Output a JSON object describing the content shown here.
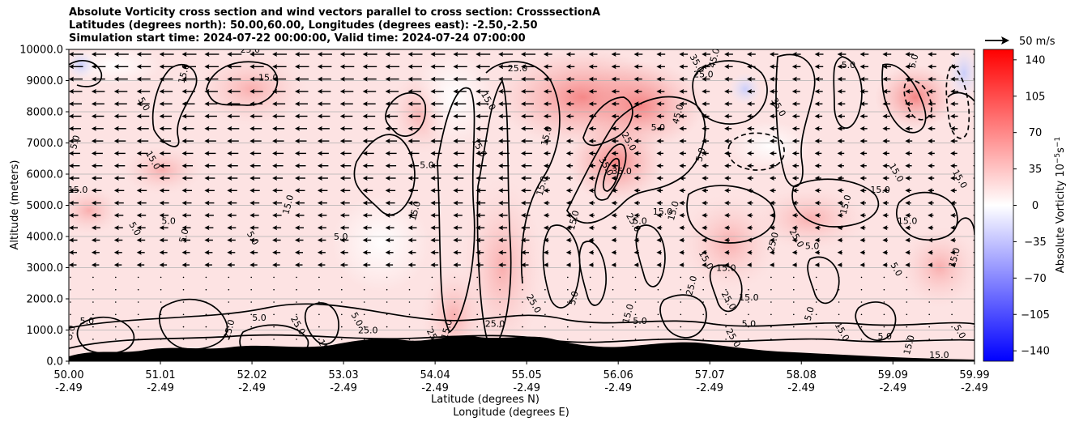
{
  "chart_data": {
    "type": "heatmap",
    "title_lines": [
      "Absolute Vorticity cross section and wind vectors parallel to cross section: CrosssectionA",
      "Latitudes (degrees north): 50.00,60.00, Longitudes (degrees east): -2.50,-2.50",
      "Simulation start time: 2024-07-22 00:00:00, Valid time: 2024-07-24 07:00:00"
    ],
    "xlabel_lat": "Latitude (degrees N)",
    "xlabel_lon": "Longitude (degrees E)",
    "ylabel": "Altitude (meters)",
    "x_ticks": [
      {
        "lat": "50.00",
        "lon": "-2.49",
        "value": 50.0
      },
      {
        "lat": "51.01",
        "lon": "-2.49",
        "value": 51.01
      },
      {
        "lat": "52.02",
        "lon": "-2.49",
        "value": 52.02
      },
      {
        "lat": "53.03",
        "lon": "-2.49",
        "value": 53.03
      },
      {
        "lat": "54.04",
        "lon": "-2.49",
        "value": 54.04
      },
      {
        "lat": "55.05",
        "lon": "-2.49",
        "value": 55.05
      },
      {
        "lat": "56.06",
        "lon": "-2.49",
        "value": 56.06
      },
      {
        "lat": "57.07",
        "lon": "-2.49",
        "value": 57.07
      },
      {
        "lat": "58.08",
        "lon": "-2.49",
        "value": 58.08
      },
      {
        "lat": "59.09",
        "lon": "-2.49",
        "value": 59.09
      },
      {
        "lat": "59.99",
        "lon": "-2.49",
        "value": 59.99
      }
    ],
    "xlim": [
      50.0,
      59.99
    ],
    "y_ticks": [
      "0.0",
      "1000.0",
      "2000.0",
      "3000.0",
      "4000.0",
      "5000.0",
      "6000.0",
      "7000.0",
      "8000.0",
      "9000.0",
      "10000.0"
    ],
    "y_values": [
      0,
      1000,
      2000,
      3000,
      4000,
      5000,
      6000,
      7000,
      8000,
      9000,
      10000
    ],
    "ylim": [
      0,
      10000
    ],
    "grid": "horizontal",
    "colorbar": {
      "label": "Absolute Vorticity 10",
      "label_exp1": "−5",
      "label_mid": "s",
      "label_exp2": "−1",
      "ticks": [
        "140",
        "105",
        "70",
        "35",
        "0",
        "−35",
        "−70",
        "−105",
        "−140"
      ],
      "tick_values": [
        140,
        105,
        70,
        35,
        0,
        -35,
        -70,
        -105,
        -140
      ],
      "range": [
        -150,
        150
      ],
      "colors": [
        "#0000ff",
        "#ffffff",
        "#ff0000"
      ]
    },
    "quiver_key": {
      "label": "50 m/s",
      "value": 50
    },
    "contour_levels": [
      5.0,
      15.0,
      25.0,
      35.0,
      45.0
    ],
    "contour_labels": [
      {
        "text": "25.0",
        "lat": 52.0,
        "alt": 9900
      },
      {
        "text": "15.0",
        "lat": 51.3,
        "alt": 9200
      },
      {
        "text": "5.0",
        "lat": 50.8,
        "alt": 8200
      },
      {
        "text": "15.0",
        "lat": 52.2,
        "alt": 9000
      },
      {
        "text": "5.0",
        "lat": 50.1,
        "alt": 7000
      },
      {
        "text": "15.0",
        "lat": 50.9,
        "alt": 6400
      },
      {
        "text": "15.0",
        "lat": 50.1,
        "alt": 5400
      },
      {
        "text": "15.0",
        "lat": 52.45,
        "alt": 5000
      },
      {
        "text": "5.0",
        "lat": 50.7,
        "alt": 4200
      },
      {
        "text": "5.0",
        "lat": 51.1,
        "alt": 4400
      },
      {
        "text": "5.0",
        "lat": 51.3,
        "alt": 4000
      },
      {
        "text": "5.0",
        "lat": 52.0,
        "alt": 3900
      },
      {
        "text": "5.0",
        "lat": 53.0,
        "alt": 3900
      },
      {
        "text": "15.0",
        "lat": 53.85,
        "alt": 4800
      },
      {
        "text": "15.0",
        "lat": 54.6,
        "alt": 8300
      },
      {
        "text": "25.0",
        "lat": 54.95,
        "alt": 9300
      },
      {
        "text": "15.0",
        "lat": 55.3,
        "alt": 7200
      },
      {
        "text": "15.0",
        "lat": 54.5,
        "alt": 6800
      },
      {
        "text": "5.0",
        "lat": 53.95,
        "alt": 6200
      },
      {
        "text": "15.0",
        "lat": 55.25,
        "alt": 5600
      },
      {
        "text": "35.0",
        "lat": 55.9,
        "alt": 6200
      },
      {
        "text": "35.0",
        "lat": 56.1,
        "alt": 6000
      },
      {
        "text": "45.0",
        "lat": 57.15,
        "alt": 9700
      },
      {
        "text": "35.0",
        "lat": 56.9,
        "alt": 9500
      },
      {
        "text": "25.0",
        "lat": 57.0,
        "alt": 9100
      },
      {
        "text": "45.0",
        "lat": 56.75,
        "alt": 7900
      },
      {
        "text": "25.0",
        "lat": 56.15,
        "alt": 7000
      },
      {
        "text": "5.0",
        "lat": 56.5,
        "alt": 7400
      },
      {
        "text": "5.0",
        "lat": 57.0,
        "alt": 6600
      },
      {
        "text": "35.0",
        "lat": 57.8,
        "alt": 8100
      },
      {
        "text": "5.0",
        "lat": 58.6,
        "alt": 9400
      },
      {
        "text": "5.0",
        "lat": 59.35,
        "alt": 9600
      },
      {
        "text": "15.0",
        "lat": 59.1,
        "alt": 6000
      },
      {
        "text": "15.0",
        "lat": 58.95,
        "alt": 5400
      },
      {
        "text": "15.0",
        "lat": 58.6,
        "alt": 5000
      },
      {
        "text": "15.0",
        "lat": 59.8,
        "alt": 5800
      },
      {
        "text": "15.0",
        "lat": 59.25,
        "alt": 4400
      },
      {
        "text": "25.0",
        "lat": 57.8,
        "alt": 3800
      },
      {
        "text": "25.0",
        "lat": 58.0,
        "alt": 3900
      },
      {
        "text": "5.0",
        "lat": 58.2,
        "alt": 3600
      },
      {
        "text": "15.0",
        "lat": 59.8,
        "alt": 3300
      },
      {
        "text": "5.0",
        "lat": 59.1,
        "alt": 2900
      },
      {
        "text": "15.0",
        "lat": 56.55,
        "alt": 4700
      },
      {
        "text": "15.0",
        "lat": 56.7,
        "alt": 4800
      },
      {
        "text": "25.0",
        "lat": 56.2,
        "alt": 4400
      },
      {
        "text": "5.0",
        "lat": 56.3,
        "alt": 4400
      },
      {
        "text": "15.0",
        "lat": 55.6,
        "alt": 4500
      },
      {
        "text": "15.0",
        "lat": 57.0,
        "alt": 3200
      },
      {
        "text": "15.0",
        "lat": 57.25,
        "alt": 2900
      },
      {
        "text": "25.0",
        "lat": 56.9,
        "alt": 2400
      },
      {
        "text": "25.0",
        "lat": 57.25,
        "alt": 1900
      },
      {
        "text": "15.0",
        "lat": 57.5,
        "alt": 1950
      },
      {
        "text": "5.0",
        "lat": 55.6,
        "alt": 2000
      },
      {
        "text": "5.0",
        "lat": 53.15,
        "alt": 1300
      },
      {
        "text": "25.0",
        "lat": 53.3,
        "alt": 900
      },
      {
        "text": "15.0",
        "lat": 53.35,
        "alt": 400
      },
      {
        "text": "15.0",
        "lat": 52.8,
        "alt": 350
      },
      {
        "text": "5.0",
        "lat": 52.1,
        "alt": 1300
      },
      {
        "text": "25.0",
        "lat": 51.8,
        "alt": 1000
      },
      {
        "text": "25.0",
        "lat": 52.5,
        "alt": 1100
      },
      {
        "text": "5.0",
        "lat": 50.2,
        "alt": 1200
      },
      {
        "text": "5.0",
        "lat": 50.05,
        "alt": 900
      },
      {
        "text": "25.0",
        "lat": 54.0,
        "alt": 700
      },
      {
        "text": "25.0",
        "lat": 54.7,
        "alt": 1100
      },
      {
        "text": "15.0",
        "lat": 54.2,
        "alt": 1000
      },
      {
        "text": "25.0",
        "lat": 55.1,
        "alt": 1800
      },
      {
        "text": "5.0",
        "lat": 56.3,
        "alt": 1200
      },
      {
        "text": "15.0",
        "lat": 56.2,
        "alt": 1500
      },
      {
        "text": "25.0",
        "lat": 57.3,
        "alt": 700
      },
      {
        "text": "5.0",
        "lat": 57.5,
        "alt": 1100
      },
      {
        "text": "5.0",
        "lat": 58.2,
        "alt": 1500
      },
      {
        "text": "15.0",
        "lat": 58.5,
        "alt": 900
      },
      {
        "text": "5.0",
        "lat": 59.0,
        "alt": 700
      },
      {
        "text": "15.0",
        "lat": 59.3,
        "alt": 500
      },
      {
        "text": "5.0",
        "lat": 59.8,
        "alt": 900
      },
      {
        "text": "15.0",
        "lat": 59.6,
        "alt": 100
      }
    ]
  }
}
